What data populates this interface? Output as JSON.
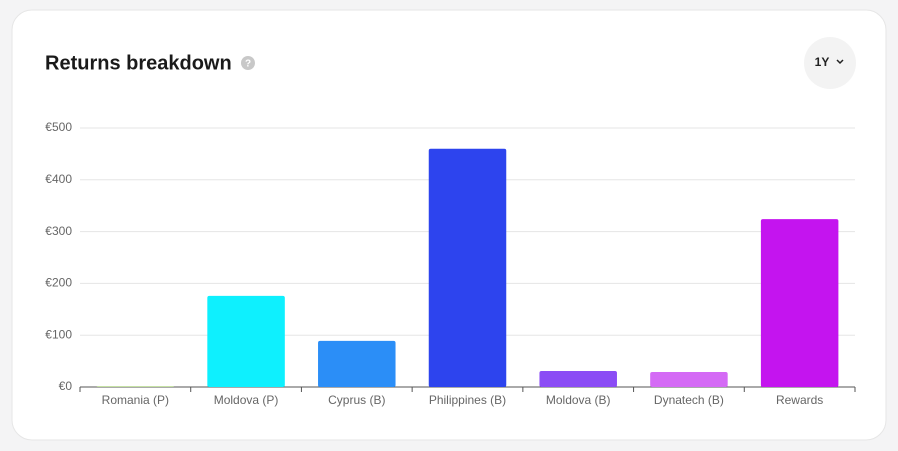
{
  "chart_data": {
    "type": "bar",
    "title": "Returns breakdown",
    "categories": [
      "Romania (P)",
      "Moldova (P)",
      "Cyprus (B)",
      "Philippines (B)",
      "Moldova (B)",
      "Dynatech (B)",
      "Rewards"
    ],
    "values": [
      1,
      176,
      89,
      460,
      31,
      29,
      324
    ],
    "colors": [
      "#8bc34a",
      "#0ef0fe",
      "#2b8ef7",
      "#2d44ee",
      "#8b4cf5",
      "#d46af5",
      "#c414ef"
    ],
    "ylim": [
      0,
      500
    ],
    "yticks": [
      {
        "value": 0,
        "label": "€0"
      },
      {
        "value": 100,
        "label": "€100"
      },
      {
        "value": 200,
        "label": "€200"
      },
      {
        "value": 300,
        "label": "€300"
      },
      {
        "value": 400,
        "label": "€400"
      },
      {
        "value": 500,
        "label": "€500"
      }
    ],
    "grid": true
  },
  "controls": {
    "period": "1Y",
    "help": "?"
  }
}
